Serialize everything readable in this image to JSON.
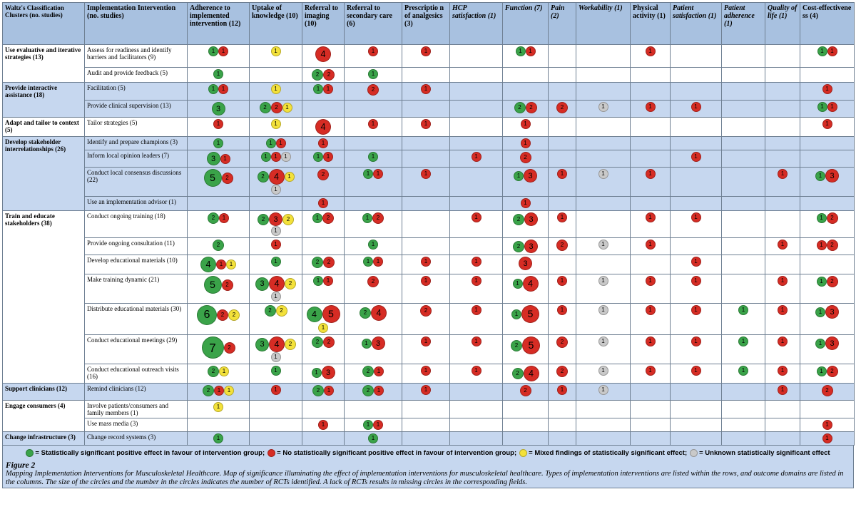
{
  "colors": {
    "green": "#3aa349",
    "red": "#d62c24",
    "yellow": "#f3e13a",
    "grey": "#c9c9c9",
    "header": "#a8c1e0",
    "band": "#c6d7ef"
  },
  "headers": [
    {
      "text": "Waltz's Classification Clusters (no. studies)",
      "italic": false
    },
    {
      "text": "Implementation Intervention (no. studies)",
      "italic": false
    },
    {
      "text": "Adherence to implemented intervention (12)",
      "italic": false
    },
    {
      "text": "Uptake of knowledge (10)",
      "italic": false
    },
    {
      "text": "Referral to imaging (10)",
      "italic": false
    },
    {
      "text": "Referral to secondary care (6)",
      "italic": false
    },
    {
      "text": "Prescriptio n of analgesics (3)",
      "italic": false
    },
    {
      "text": "HCP satisfaction (1)",
      "italic": true
    },
    {
      "text": "Function (7)",
      "italic": true
    },
    {
      "text": "Pain (2)",
      "italic": true
    },
    {
      "text": "Workability (1)",
      "italic": true
    },
    {
      "text": "Physical activity (1)",
      "italic": false
    },
    {
      "text": "Patient satisfaction (1)",
      "italic": true
    },
    {
      "text": "Patient adherence (1)",
      "italic": true
    },
    {
      "text": "Quality of life (1)",
      "italic": true
    },
    {
      "text": "Cost-effectivene ss (4)",
      "italic": false
    }
  ],
  "clusters": [
    {
      "label": "Use evaluative and iterative strategies (13)",
      "band": "white",
      "rows": [
        {
          "label": "Assess for readiness and identify barriers and facilitators (9)",
          "cells": [
            "g1 r1",
            "y1",
            "r4",
            "r1",
            "r1",
            "",
            "g1 r1",
            "",
            "",
            "r1",
            "",
            "",
            "",
            "g1 r1"
          ]
        },
        {
          "label": "Audit and provide feedback (5)",
          "cells": [
            "g1",
            "",
            "g2 r2",
            "g1",
            "",
            "",
            "",
            "",
            "",
            "",
            "",
            "",
            "",
            ""
          ]
        }
      ]
    },
    {
      "label": "Provide interactive assistance (18)",
      "band": "band",
      "rows": [
        {
          "label": "Facilitation (5)",
          "cells": [
            "g1 r1",
            "y1",
            "g1 r1",
            "r2",
            "r1",
            "",
            "",
            "",
            "",
            "",
            "",
            "",
            "",
            "r1"
          ]
        },
        {
          "label": "Provide clinical supervision (13)",
          "cells": [
            "g3",
            "g2 r2 y1",
            "",
            "",
            "",
            "",
            "g2 r2",
            "r2",
            "u1",
            "r1",
            "r1",
            "",
            "",
            "g1 r1"
          ]
        }
      ]
    },
    {
      "label": "Adapt and tailor to context (5)",
      "band": "white",
      "rows": [
        {
          "label": "Tailor strategies (5)",
          "cells": [
            "r1",
            "y1",
            "r4",
            "r1",
            "r1",
            "",
            "r1",
            "",
            "",
            "",
            "",
            "",
            "",
            "r1"
          ]
        }
      ]
    },
    {
      "label": "Develop stakeholder interrelationships (26)",
      "band": "band",
      "rows": [
        {
          "label": "Identify and prepare champions (3)",
          "cells": [
            "g1",
            "g1 r1",
            "r1",
            "",
            "",
            "",
            "r1",
            "",
            "",
            "",
            "",
            "",
            "",
            ""
          ]
        },
        {
          "label": "Inform local opinion leaders (7)",
          "cells": [
            "g3 r1",
            "g1 r1 u1",
            "g1 r1",
            "g1",
            "",
            "r1",
            "r2",
            "",
            "",
            "",
            "r1",
            "",
            "",
            ""
          ]
        },
        {
          "label": "Conduct local consensus discussions (22)",
          "cells": [
            "g5 r2",
            "g2 r4 y1 u1",
            "r2",
            "g1 r1",
            "r1",
            "",
            "g1 r3",
            "r1",
            "u1",
            "r1",
            "",
            "",
            "r1",
            "g1 r3"
          ]
        },
        {
          "label": "Use an implementation advisor (1)",
          "cells": [
            "",
            "",
            "r1",
            "",
            "",
            "",
            "r1",
            "",
            "",
            "",
            "",
            "",
            "",
            ""
          ]
        }
      ]
    },
    {
      "label": "Train and educate stakeholders (38)",
      "band": "white",
      "rows": [
        {
          "label": "Conduct ongoing training (18)",
          "cells": [
            "g2 r1",
            "g2 r3 y2 u1",
            "g1 r2",
            "g1 r2",
            "",
            "r1",
            "g2 r3",
            "r1",
            "",
            "r1",
            "r1",
            "",
            "",
            "g1 r2"
          ]
        },
        {
          "label": "Provide ongoing consultation (11)",
          "cells": [
            "g2",
            "r1",
            "",
            "g1",
            "",
            "",
            "g2 r3",
            "r2",
            "u1",
            "r1",
            "",
            "",
            "r1",
            "r1 r2"
          ]
        },
        {
          "label": "Develop educational materials (10)",
          "cells": [
            "g4 r1 y1",
            "g1",
            "g2 r2",
            "g1 r1",
            "r1",
            "r1",
            "r3",
            "",
            "",
            "",
            "r1",
            "",
            "",
            ""
          ]
        },
        {
          "label": "Make training dynamic (21)",
          "cells": [
            "g5 r2",
            "g3 r4 y2 u1",
            "g1 r1",
            "r2",
            "r1",
            "r1",
            "g1 r4",
            "r1",
            "u1",
            "r1",
            "r1",
            "",
            "r1",
            "g1 r2"
          ]
        },
        {
          "label": "Distribute educational materials (30)",
          "cells": [
            "g6 r2 y2",
            "g2 y2",
            "g4 r5 y1",
            "g2 r4",
            "r2",
            "r1",
            "g1 r5",
            "r1",
            "u1",
            "r1",
            "r1",
            "g1",
            "r1",
            "g1 r3"
          ]
        },
        {
          "label": "Conduct educational meetings (29)",
          "cells": [
            "g7 r2",
            "g3 r4 y2 u1",
            "g2 r2",
            "g1 r3",
            "r1",
            "r1",
            "g2 r5",
            "r2",
            "u1",
            "r1",
            "r1",
            "g1",
            "r1",
            "g1 r3"
          ]
        },
        {
          "label": "Conduct educational outreach visits (16)",
          "cells": [
            "g2 y1",
            "g1",
            "g1 r3",
            "g2 r1",
            "r1",
            "r1",
            "g2 r4",
            "r2",
            "u1",
            "r1",
            "r1",
            "g1",
            "r1",
            "g1 r2"
          ]
        }
      ]
    },
    {
      "label": "Support clinicians (12)",
      "band": "band",
      "rows": [
        {
          "label": "Remind clinicians (12)",
          "cells": [
            "g2 r1 y1",
            "r1",
            "g2 r1",
            "g2 r1",
            "r1",
            "",
            "r2",
            "r1",
            "u1",
            "",
            "",
            "",
            "r1",
            "r2"
          ]
        }
      ]
    },
    {
      "label": "Engage consumers (4)",
      "band": "white",
      "rows": [
        {
          "label": "Involve patients/consumers and family members (1)",
          "cells": [
            "y1",
            "",
            "",
            "",
            "",
            "",
            "",
            "",
            "",
            "",
            "",
            "",
            "",
            ""
          ]
        },
        {
          "label": "Use mass media (3)",
          "cells": [
            "",
            "",
            "r1",
            "g1 r1",
            "",
            "",
            "",
            "",
            "",
            "",
            "",
            "",
            "",
            "r1"
          ]
        }
      ]
    },
    {
      "label": "Change infrastructure (3)",
      "band": "band",
      "rows": [
        {
          "label": "Change record systems (3)",
          "cells": [
            "g1",
            "",
            "",
            "g1",
            "",
            "",
            "",
            "",
            "",
            "",
            "",
            "",
            "",
            "r1"
          ]
        }
      ]
    }
  ],
  "legend": [
    {
      "color": "#3aa349",
      "text": "= Statistically significant positive effect in favour of intervention group;"
    },
    {
      "color": "#d62c24",
      "text": "= No statistically significant positive effect in favour of intervention group;"
    },
    {
      "color": "#f3e13a",
      "text": "= Mixed findings of statistically significant effect;"
    },
    {
      "color": "#c9c9c9",
      "text": "= Unknown statistically significant effect"
    }
  ],
  "caption": {
    "figure": "Figure 2",
    "text": "Mapping Implementation Interventions for Musculoskeletal Healthcare. Map of significance illuminating the effect of implementation interventions for musculoskeletal healthcare. Types of implementation interventions are listed within the rows, and outcome domains are listed in the columns. The size of the circles and the number in the circles indicates the number of RCTs identified. A lack of RCTs results in missing circles in the corresponding fields."
  }
}
